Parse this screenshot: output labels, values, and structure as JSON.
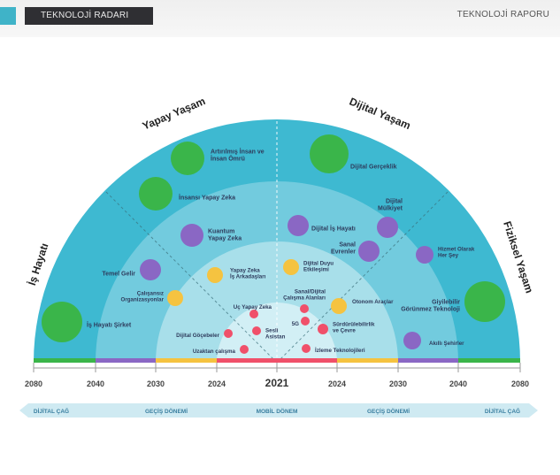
{
  "header": {
    "badge": "TEKNOLOJİ RADARI",
    "report": "TEKNOLOJİ RAPORU"
  },
  "sectors": {
    "yapay": "Yapay Yaşam",
    "dijital": "Dijital Yaşam",
    "is": "İş Hayatı",
    "fiziksel": "Fiziksel Yaşam"
  },
  "center_year": "2021",
  "axis_years": [
    "2080",
    "2040",
    "2030",
    "2024",
    "2024",
    "2030",
    "2040",
    "2080"
  ],
  "eras": [
    "DİJİTAL ÇAĞ",
    "GEÇİŞ DÖNEMİ",
    "MOBİL DÖNEM",
    "GEÇİŞ DÖNEMİ",
    "DİJİTAL ÇAĞ"
  ],
  "colors": {
    "ring_outer": "#3eb9d1",
    "ring_2": "#72cbde",
    "ring_3": "#a8dfea",
    "ring_inner": "#d2eff5",
    "green": "#3ab54a",
    "purple": "#8a67c4",
    "yellow": "#f5c340",
    "red": "#f0506a"
  },
  "technologies": [
    {
      "label": "Artırılmış İnsan ve\nİnsan Ömrü",
      "color": "green"
    },
    {
      "label": "İnsansı Yapay Zeka",
      "color": "green"
    },
    {
      "label": "Dijital Gerçeklik",
      "color": "green"
    },
    {
      "label": "İş Hayatı Şirket",
      "color": "green"
    },
    {
      "label": "Giyilebilir\nGörünmez Teknoloji",
      "color": "green"
    },
    {
      "label": "Kuantum\nYapay Zeka",
      "color": "purple"
    },
    {
      "label": "Temel Gelir",
      "color": "purple"
    },
    {
      "label": "Dijital İş Hayatı",
      "color": "purple"
    },
    {
      "label": "Dijital\nMülkiyet",
      "color": "purple"
    },
    {
      "label": "Sanal\nEvrenler",
      "color": "purple"
    },
    {
      "label": "Hizmet Olarak\nHer Şey",
      "color": "purple"
    },
    {
      "label": "Akıllı Şehirler",
      "color": "purple"
    },
    {
      "label": "Yapay Zeka\nİş Arkadaşları",
      "color": "yellow"
    },
    {
      "label": "Çalışansız\nOrganizasyonlar",
      "color": "yellow"
    },
    {
      "label": "Dijital Duyu\nEtkileşimi",
      "color": "yellow"
    },
    {
      "label": "Otonom Araçlar",
      "color": "yellow"
    },
    {
      "label": "Uç Yapay Zeka",
      "color": "red"
    },
    {
      "label": "Sanal/Dijital\nÇalışma Alanları",
      "color": "red"
    },
    {
      "label": "5G",
      "color": "red"
    },
    {
      "label": "Dijital Göçebeler",
      "color": "red"
    },
    {
      "label": "Sesli\nAsistan",
      "color": "red"
    },
    {
      "label": "Sürdürülebilirlik\nve Çevre",
      "color": "red"
    },
    {
      "label": "Uzaktan çalışma",
      "color": "red"
    },
    {
      "label": "İzleme Teknolojileri",
      "color": "red"
    }
  ]
}
